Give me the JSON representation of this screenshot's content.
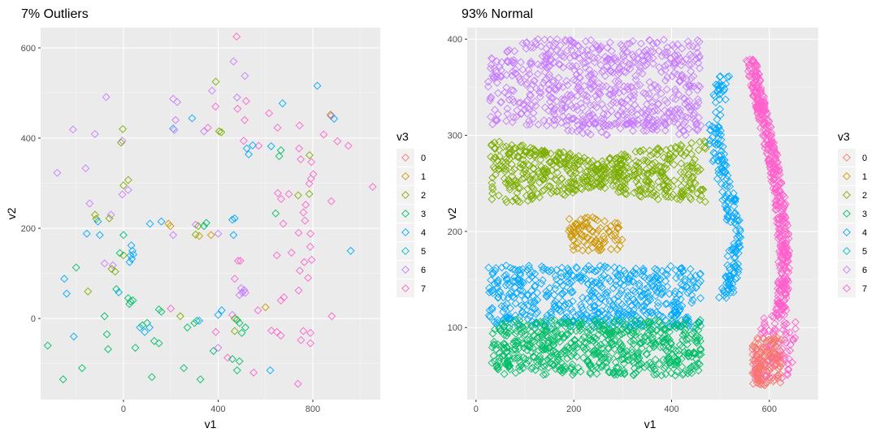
{
  "chart_data": [
    {
      "type": "scatter",
      "title": "7% Outliers",
      "xlabel": "v1",
      "ylabel": "v2",
      "xlim": [
        -350,
        1085
      ],
      "ylim": [
        -180,
        645
      ],
      "xticks": [
        0,
        400,
        800
      ],
      "yticks": [
        0,
        200,
        400,
        600
      ],
      "grid": true,
      "marker": "open-diamond",
      "points": [
        {
          "g": "7",
          "x": 478,
          "y": 625
        },
        {
          "g": "6",
          "x": 465,
          "y": 570
        },
        {
          "g": "6",
          "x": 513,
          "y": 538
        },
        {
          "g": "2",
          "x": 390,
          "y": 525
        },
        {
          "g": "4",
          "x": 819,
          "y": 516
        },
        {
          "g": "6",
          "x": 374,
          "y": 505
        },
        {
          "g": "6",
          "x": 480,
          "y": 490
        },
        {
          "g": "6",
          "x": -73,
          "y": 491
        },
        {
          "g": "6",
          "x": 210,
          "y": 487
        },
        {
          "g": "6",
          "x": 227,
          "y": 480
        },
        {
          "g": "4",
          "x": 672,
          "y": 477
        },
        {
          "g": "7",
          "x": 518,
          "y": 482
        },
        {
          "g": "7",
          "x": 389,
          "y": 470
        },
        {
          "g": "7",
          "x": 482,
          "y": 465
        },
        {
          "g": "7",
          "x": 615,
          "y": 455
        },
        {
          "g": "2",
          "x": 875,
          "y": 452
        },
        {
          "g": "7",
          "x": 877,
          "y": 449
        },
        {
          "g": "4",
          "x": 890,
          "y": 443
        },
        {
          "g": "4",
          "x": 290,
          "y": 444
        },
        {
          "g": "6",
          "x": 220,
          "y": 440
        },
        {
          "g": "7",
          "x": 512,
          "y": 440
        },
        {
          "g": "7",
          "x": 744,
          "y": 428
        },
        {
          "g": "7",
          "x": 651,
          "y": 423
        },
        {
          "g": "7",
          "x": 357,
          "y": 423
        },
        {
          "g": "6",
          "x": -213,
          "y": 419
        },
        {
          "g": "6",
          "x": -121,
          "y": 409
        },
        {
          "g": "4",
          "x": 210,
          "y": 421
        },
        {
          "g": "6",
          "x": 215,
          "y": 418
        },
        {
          "g": "6",
          "x": 340,
          "y": 415
        },
        {
          "g": "6",
          "x": -5,
          "y": 394
        },
        {
          "g": "2",
          "x": 404,
          "y": 415
        },
        {
          "g": "2",
          "x": 413,
          "y": 413
        },
        {
          "g": "2",
          "x": -3,
          "y": 420
        },
        {
          "g": "2",
          "x": -10,
          "y": 390
        },
        {
          "g": "7",
          "x": 846,
          "y": 408
        },
        {
          "g": "7",
          "x": 508,
          "y": 394
        },
        {
          "g": "7",
          "x": 571,
          "y": 383
        },
        {
          "g": "7",
          "x": 904,
          "y": 393
        },
        {
          "g": "7",
          "x": 950,
          "y": 383
        },
        {
          "g": "7",
          "x": 742,
          "y": 377
        },
        {
          "g": "4",
          "x": 521,
          "y": 377
        },
        {
          "g": "4",
          "x": 546,
          "y": 384
        },
        {
          "g": "4",
          "x": 529,
          "y": 364
        },
        {
          "g": "4",
          "x": 624,
          "y": 382
        },
        {
          "g": "3",
          "x": 665,
          "y": 373
        },
        {
          "g": "3",
          "x": 658,
          "y": 360
        },
        {
          "g": "2",
          "x": 786,
          "y": 362
        },
        {
          "g": "7",
          "x": 749,
          "y": 353
        },
        {
          "g": "7",
          "x": 794,
          "y": 347
        },
        {
          "g": "6",
          "x": -160,
          "y": 333
        },
        {
          "g": "6",
          "x": -280,
          "y": 323
        },
        {
          "g": "7",
          "x": 792,
          "y": 310
        },
        {
          "g": "7",
          "x": 802,
          "y": 320
        },
        {
          "g": "2",
          "x": 0,
          "y": 295
        },
        {
          "g": "2",
          "x": 20,
          "y": 307
        },
        {
          "g": "6",
          "x": -5,
          "y": 275
        },
        {
          "g": "6",
          "x": 20,
          "y": 285
        },
        {
          "g": "7",
          "x": 1053,
          "y": 292
        },
        {
          "g": "7",
          "x": 785,
          "y": 299
        },
        {
          "g": "2",
          "x": 738,
          "y": 273
        },
        {
          "g": "2",
          "x": 785,
          "y": 276
        },
        {
          "g": "7",
          "x": 652,
          "y": 278
        },
        {
          "g": "7",
          "x": 699,
          "y": 276
        },
        {
          "g": "7",
          "x": 878,
          "y": 260
        },
        {
          "g": "6",
          "x": -143,
          "y": 255
        },
        {
          "g": "7",
          "x": 666,
          "y": 265
        },
        {
          "g": "7",
          "x": 770,
          "y": 252
        },
        {
          "g": "3",
          "x": 643,
          "y": 233
        },
        {
          "g": "6",
          "x": -53,
          "y": 230
        },
        {
          "g": "2",
          "x": -120,
          "y": 230
        },
        {
          "g": "2",
          "x": -115,
          "y": 221
        },
        {
          "g": "2",
          "x": -60,
          "y": 222
        },
        {
          "g": "4",
          "x": -108,
          "y": 215
        },
        {
          "g": "4",
          "x": 460,
          "y": 219
        },
        {
          "g": "4",
          "x": 470,
          "y": 222
        },
        {
          "g": "4",
          "x": 160,
          "y": 215
        },
        {
          "g": "4",
          "x": 112,
          "y": 210
        },
        {
          "g": "7",
          "x": 767,
          "y": 217
        },
        {
          "g": "7",
          "x": 760,
          "y": 235
        },
        {
          "g": "7",
          "x": 675,
          "y": 210
        },
        {
          "g": "1",
          "x": 190,
          "y": 210
        },
        {
          "g": "1",
          "x": 198,
          "y": 205
        },
        {
          "g": "6",
          "x": 305,
          "y": 208
        },
        {
          "g": "2",
          "x": 316,
          "y": 205
        },
        {
          "g": "3",
          "x": 350,
          "y": 212
        },
        {
          "g": "3",
          "x": 340,
          "y": 205
        },
        {
          "g": "4",
          "x": -155,
          "y": 188
        },
        {
          "g": "4",
          "x": -100,
          "y": 185
        },
        {
          "g": "6",
          "x": 210,
          "y": 185
        },
        {
          "g": "6",
          "x": 400,
          "y": 188
        },
        {
          "g": "1",
          "x": 320,
          "y": 183
        },
        {
          "g": "1",
          "x": 370,
          "y": 185
        },
        {
          "g": "2",
          "x": 305,
          "y": 186
        },
        {
          "g": "4",
          "x": 465,
          "y": 185
        },
        {
          "g": "7",
          "x": 740,
          "y": 190
        },
        {
          "g": "7",
          "x": 790,
          "y": 188
        },
        {
          "g": "3",
          "x": 0,
          "y": 185
        },
        {
          "g": "4",
          "x": 33,
          "y": 162
        },
        {
          "g": "4",
          "x": 38,
          "y": 150
        },
        {
          "g": "4",
          "x": 42,
          "y": 142
        },
        {
          "g": "4",
          "x": 30,
          "y": 140
        },
        {
          "g": "4",
          "x": 35,
          "y": 132
        },
        {
          "g": "4",
          "x": 26,
          "y": 125
        },
        {
          "g": "2",
          "x": 0,
          "y": 140
        },
        {
          "g": "3",
          "x": -15,
          "y": 145
        },
        {
          "g": "4",
          "x": 960,
          "y": 150
        },
        {
          "g": "7",
          "x": 789,
          "y": 159
        },
        {
          "g": "7",
          "x": 710,
          "y": 146
        },
        {
          "g": "7",
          "x": 648,
          "y": 140
        },
        {
          "g": "3",
          "x": -200,
          "y": 113
        },
        {
          "g": "6",
          "x": -80,
          "y": 122
        },
        {
          "g": "6",
          "x": -45,
          "y": 118
        },
        {
          "g": "7",
          "x": 764,
          "y": 125
        },
        {
          "g": "7",
          "x": 795,
          "y": 130
        },
        {
          "g": "7",
          "x": 484,
          "y": 128
        },
        {
          "g": "7",
          "x": 494,
          "y": 128
        },
        {
          "g": "2",
          "x": -50,
          "y": 110
        },
        {
          "g": "2",
          "x": -35,
          "y": 104
        },
        {
          "g": "4",
          "x": -250,
          "y": 88
        },
        {
          "g": "7",
          "x": 470,
          "y": 88
        },
        {
          "g": "7",
          "x": 780,
          "y": 90
        },
        {
          "g": "7",
          "x": 745,
          "y": 106
        },
        {
          "g": "6",
          "x": 497,
          "y": 67
        },
        {
          "g": "6",
          "x": 502,
          "y": 57
        },
        {
          "g": "6",
          "x": 510,
          "y": 63
        },
        {
          "g": "6",
          "x": 515,
          "y": 57
        },
        {
          "g": "6",
          "x": 490,
          "y": 52
        },
        {
          "g": "7",
          "x": 740,
          "y": 62
        },
        {
          "g": "7",
          "x": 665,
          "y": 40
        },
        {
          "g": "7",
          "x": 678,
          "y": 47
        },
        {
          "g": "2",
          "x": -150,
          "y": 60
        },
        {
          "g": "4",
          "x": -240,
          "y": 55
        },
        {
          "g": "3",
          "x": -30,
          "y": 65
        },
        {
          "g": "4",
          "x": -20,
          "y": 58
        },
        {
          "g": "3",
          "x": 20,
          "y": 45
        },
        {
          "g": "3",
          "x": 30,
          "y": 38
        },
        {
          "g": "3",
          "x": 25,
          "y": 32
        },
        {
          "g": "3",
          "x": 40,
          "y": 40
        },
        {
          "g": "7",
          "x": 568,
          "y": 18
        },
        {
          "g": "3",
          "x": 150,
          "y": 20
        },
        {
          "g": "3",
          "x": 160,
          "y": 15
        },
        {
          "g": "7",
          "x": 200,
          "y": 22
        },
        {
          "g": "4",
          "x": 415,
          "y": 18
        },
        {
          "g": "4",
          "x": 400,
          "y": 8
        },
        {
          "g": "1",
          "x": 600,
          "y": 25
        },
        {
          "g": "3",
          "x": -80,
          "y": 5
        },
        {
          "g": "6",
          "x": 460,
          "y": 8
        },
        {
          "g": "2",
          "x": 470,
          "y": 0
        },
        {
          "g": "3",
          "x": 480,
          "y": -3
        },
        {
          "g": "3",
          "x": 490,
          "y": -10
        },
        {
          "g": "2",
          "x": 240,
          "y": 5
        },
        {
          "g": "3",
          "x": 270,
          "y": -20
        },
        {
          "g": "3",
          "x": 300,
          "y": -10
        },
        {
          "g": "3",
          "x": 310,
          "y": -5
        },
        {
          "g": "4",
          "x": 320,
          "y": -5
        },
        {
          "g": "7",
          "x": 880,
          "y": 5
        },
        {
          "g": "4",
          "x": 70,
          "y": -20
        },
        {
          "g": "4",
          "x": 90,
          "y": -30
        },
        {
          "g": "3",
          "x": 80,
          "y": -15
        },
        {
          "g": "3",
          "x": 100,
          "y": -10
        },
        {
          "g": "4",
          "x": 110,
          "y": -20
        },
        {
          "g": "4",
          "x": -210,
          "y": -40
        },
        {
          "g": "3",
          "x": -70,
          "y": -35
        },
        {
          "g": "7",
          "x": 390,
          "y": -30
        },
        {
          "g": "2",
          "x": 470,
          "y": -28
        },
        {
          "g": "3",
          "x": 500,
          "y": -32
        },
        {
          "g": "3",
          "x": 515,
          "y": -20
        },
        {
          "g": "3",
          "x": 130,
          "y": -50
        },
        {
          "g": "3",
          "x": 150,
          "y": -55
        },
        {
          "g": "7",
          "x": 625,
          "y": -27
        },
        {
          "g": "7",
          "x": 648,
          "y": -30
        },
        {
          "g": "7",
          "x": 665,
          "y": -38
        },
        {
          "g": "7",
          "x": 760,
          "y": -28
        },
        {
          "g": "7",
          "x": 790,
          "y": -32
        },
        {
          "g": "7",
          "x": 750,
          "y": -48
        },
        {
          "g": "7",
          "x": 790,
          "y": -55
        },
        {
          "g": "3",
          "x": -320,
          "y": -60
        },
        {
          "g": "3",
          "x": -65,
          "y": -68
        },
        {
          "g": "3",
          "x": 50,
          "y": -65
        },
        {
          "g": "3",
          "x": 380,
          "y": -72
        },
        {
          "g": "6",
          "x": 400,
          "y": -65
        },
        {
          "g": "7",
          "x": 440,
          "y": -87
        },
        {
          "g": "3",
          "x": 460,
          "y": -90
        },
        {
          "g": "3",
          "x": 490,
          "y": -95
        },
        {
          "g": "3",
          "x": 480,
          "y": -115
        },
        {
          "g": "4",
          "x": 620,
          "y": -115
        },
        {
          "g": "7",
          "x": 550,
          "y": -120
        },
        {
          "g": "3",
          "x": -175,
          "y": -110
        },
        {
          "g": "3",
          "x": -255,
          "y": -135
        },
        {
          "g": "3",
          "x": 120,
          "y": -130
        },
        {
          "g": "3",
          "x": 255,
          "y": -110
        },
        {
          "g": "3",
          "x": 325,
          "y": -135
        },
        {
          "g": "7",
          "x": 737,
          "y": -145
        }
      ]
    },
    {
      "type": "scatter",
      "title": "93% Normal",
      "xlabel": "v1",
      "ylabel": "v2",
      "xlim": [
        -18,
        700
      ],
      "ylim": [
        25,
        412
      ],
      "xticks": [
        0,
        200,
        400,
        600
      ],
      "yticks": [
        100,
        200,
        300,
        400
      ],
      "grid": true,
      "marker": "open-diamond",
      "clusters": [
        {
          "g": "6",
          "shape": "box",
          "x": [
            25,
            460
          ],
          "y": [
            310,
            400
          ],
          "count": 620
        },
        {
          "g": "6",
          "shape": "box",
          "x": [
            180,
            460
          ],
          "y": [
            300,
            320
          ],
          "count": 60
        },
        {
          "g": "2",
          "shape": "bow",
          "x": [
            30,
            470
          ],
          "y": [
            225,
            295
          ],
          "count": 560
        },
        {
          "g": "1",
          "shape": "box",
          "x": [
            190,
            300
          ],
          "y": [
            180,
            215
          ],
          "count": 90
        },
        {
          "g": "4",
          "shape": "box",
          "x": [
            25,
            460
          ],
          "y": [
            100,
            165
          ],
          "count": 540
        },
        {
          "g": "3",
          "shape": "box",
          "x": [
            30,
            460
          ],
          "y": [
            50,
            108
          ],
          "count": 600
        },
        {
          "g": "4",
          "shape": "curve",
          "x": [
            470,
            550
          ],
          "y": [
            130,
            365
          ],
          "count": 190
        },
        {
          "g": "7",
          "shape": "curve",
          "x": [
            540,
            680
          ],
          "y": [
            45,
            380
          ],
          "count": 520
        },
        {
          "g": "0",
          "shape": "box",
          "x": [
            565,
            625
          ],
          "y": [
            40,
            90
          ],
          "count": 120
        }
      ]
    }
  ],
  "legend": {
    "title": "v3",
    "groups": [
      "0",
      "1",
      "2",
      "3",
      "4",
      "5",
      "6",
      "7"
    ],
    "colors": {
      "0": "#F8766D",
      "1": "#CD9600",
      "2": "#7CAE00",
      "3": "#00BE67",
      "4": "#00A9FF",
      "5": "#00BFC4",
      "6": "#C77CFF",
      "7": "#FF61CC"
    }
  }
}
